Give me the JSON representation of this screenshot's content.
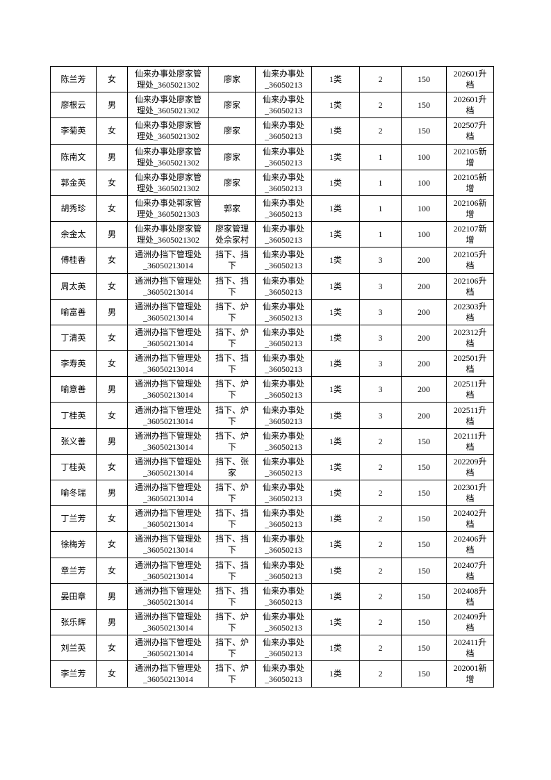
{
  "page": {
    "background": "#ffffff",
    "text_color": "#000000",
    "border_color": "#000000"
  },
  "table": {
    "fields": [
      "name",
      "gender",
      "management_unit",
      "village",
      "office",
      "category",
      "count",
      "amount",
      "change"
    ],
    "rows": [
      [
        "陈兰芳",
        "女",
        "仙来办事处廖家管\n理处_3605021302",
        "廖家",
        "仙来办事处\n_36050213",
        "1类",
        "2",
        "150",
        "202601升\n档"
      ],
      [
        "廖根云",
        "男",
        "仙来办事处廖家管\n理处_3605021302",
        "廖家",
        "仙来办事处\n_36050213",
        "1类",
        "2",
        "150",
        "202601升\n档"
      ],
      [
        "李菊英",
        "女",
        "仙来办事处廖家管\n理处_3605021302",
        "廖家",
        "仙来办事处\n_36050213",
        "1类",
        "2",
        "150",
        "202507升\n档"
      ],
      [
        "陈南文",
        "男",
        "仙来办事处廖家管\n理处_3605021302",
        "廖家",
        "仙来办事处\n_36050213",
        "1类",
        "1",
        "100",
        "202105新\n增"
      ],
      [
        "郭金英",
        "女",
        "仙来办事处廖家管\n理处_3605021302",
        "廖家",
        "仙来办事处\n_36050213",
        "1类",
        "1",
        "100",
        "202105新\n增"
      ],
      [
        "胡秀珍",
        "女",
        "仙来办事处郭家管\n理处_3605021303",
        "郭家",
        "仙来办事处\n_36050213",
        "1类",
        "1",
        "100",
        "202106新\n增"
      ],
      [
        "余金太",
        "男",
        "仙来办事处廖家管\n理处_3605021302",
        "廖家管理\n处佘家村",
        "仙来办事处\n_36050213",
        "1类",
        "1",
        "100",
        "202107新\n增"
      ],
      [
        "傅桂香",
        "女",
        "通洲办挡下管理处\n_36050213014",
        "挡下、挡\n下",
        "仙来办事处\n_36050213",
        "1类",
        "3",
        "200",
        "202105升\n档"
      ],
      [
        "周太英",
        "女",
        "通洲办挡下管理处\n_36050213014",
        "挡下、挡\n下",
        "仙来办事处\n_36050213",
        "1类",
        "3",
        "200",
        "202106升\n档"
      ],
      [
        "喻富善",
        "男",
        "通洲办挡下管理处\n_36050213014",
        "挡下、炉\n下",
        "仙来办事处\n_36050213",
        "1类",
        "3",
        "200",
        "202303升\n档"
      ],
      [
        "丁清英",
        "女",
        "通洲办挡下管理处\n_36050213014",
        "挡下、炉\n下",
        "仙来办事处\n_36050213",
        "1类",
        "3",
        "200",
        "202312升\n档"
      ],
      [
        "李寿英",
        "女",
        "通洲办挡下管理处\n_36050213014",
        "挡下、挡\n下",
        "仙来办事处\n_36050213",
        "1类",
        "3",
        "200",
        "202501升\n档"
      ],
      [
        "喻意善",
        "男",
        "通洲办挡下管理处\n_36050213014",
        "挡下、炉\n下",
        "仙来办事处\n_36050213",
        "1类",
        "3",
        "200",
        "202511升\n档"
      ],
      [
        "丁桂英",
        "女",
        "通洲办挡下管理处\n_36050213014",
        "挡下、炉\n下",
        "仙来办事处\n_36050213",
        "1类",
        "3",
        "200",
        "202511升\n档"
      ],
      [
        "张义善",
        "男",
        "通洲办挡下管理处\n_36050213014",
        "挡下、炉\n下",
        "仙来办事处\n_36050213",
        "1类",
        "2",
        "150",
        "202111升\n档"
      ],
      [
        "丁桂英",
        "女",
        "通洲办挡下管理处\n_36050213014",
        "挡下、张\n家",
        "仙来办事处\n_36050213",
        "1类",
        "2",
        "150",
        "202209升\n档"
      ],
      [
        "喻冬瑞",
        "男",
        "通洲办挡下管理处\n_36050213014",
        "挡下、炉\n下",
        "仙来办事处\n_36050213",
        "1类",
        "2",
        "150",
        "202301升\n档"
      ],
      [
        "丁兰芳",
        "女",
        "通洲办挡下管理处\n_36050213014",
        "挡下、挡\n下",
        "仙来办事处\n_36050213",
        "1类",
        "2",
        "150",
        "202402升\n档"
      ],
      [
        "徐梅芳",
        "女",
        "通洲办挡下管理处\n_36050213014",
        "挡下、挡\n下",
        "仙来办事处\n_36050213",
        "1类",
        "2",
        "150",
        "202406升\n档"
      ],
      [
        "章兰芳",
        "女",
        "通洲办挡下管理处\n_36050213014",
        "挡下、挡\n下",
        "仙来办事处\n_36050213",
        "1类",
        "2",
        "150",
        "202407升\n档"
      ],
      [
        "晏田章",
        "男",
        "通洲办挡下管理处\n_36050213014",
        "挡下、挡\n下",
        "仙来办事处\n_36050213",
        "1类",
        "2",
        "150",
        "202408升\n档"
      ],
      [
        "张乐辉",
        "男",
        "通洲办挡下管理处\n_36050213014",
        "挡下、炉\n下",
        "仙来办事处\n_36050213",
        "1类",
        "2",
        "150",
        "202409升\n档"
      ],
      [
        "刘兰英",
        "女",
        "通洲办挡下管理处\n_36050213014",
        "挡下、炉\n下",
        "仙来办事处\n_36050213",
        "1类",
        "2",
        "150",
        "202411升\n档"
      ],
      [
        "李兰芳",
        "女",
        "通洲办挡下管理处\n_36050213014",
        "挡下、炉\n下",
        "仙来办事处\n_36050213",
        "1类",
        "2",
        "150",
        "202001新\n增"
      ]
    ]
  }
}
